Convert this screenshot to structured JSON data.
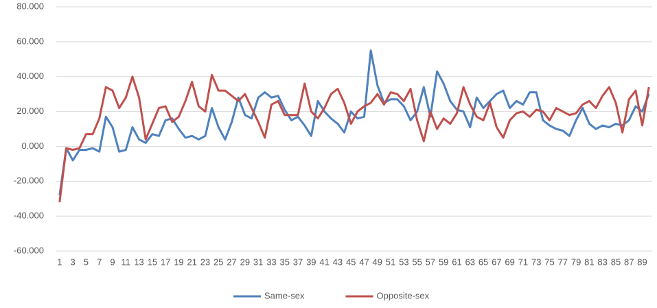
{
  "chart_data": {
    "type": "line",
    "categories": [
      "1",
      null,
      "3",
      null,
      "5",
      null,
      "7",
      null,
      "9",
      null,
      "11",
      null,
      "13",
      null,
      "15",
      null,
      "17",
      null,
      "19",
      null,
      "21",
      null,
      "23",
      null,
      "25",
      null,
      "27",
      null,
      "29",
      null,
      "31",
      null,
      "33",
      null,
      "35",
      null,
      "37",
      null,
      "39",
      null,
      "41",
      null,
      "43",
      null,
      "45",
      null,
      "47",
      null,
      "49",
      null,
      "51",
      null,
      "53",
      null,
      "55",
      null,
      "57",
      null,
      "59",
      null,
      "61",
      null,
      "63",
      null,
      "65",
      null,
      "67",
      null,
      "69",
      null,
      "71",
      null,
      "73",
      null,
      "75",
      null,
      "77",
      null,
      "79",
      null,
      "81",
      null,
      "83",
      null,
      "85",
      null,
      "87",
      null,
      "89",
      null
    ],
    "series": [
      {
        "name": "Same-sex",
        "color": "#4f81bd",
        "values": [
          -28,
          -1,
          -8,
          -2,
          -2,
          -1,
          -3,
          17,
          11,
          -3,
          -2,
          11,
          4,
          2,
          7,
          6,
          15,
          16,
          10,
          5,
          6,
          4,
          6,
          22,
          11,
          4,
          14,
          28,
          18,
          16,
          28,
          31,
          28,
          29,
          21,
          15,
          17,
          12,
          6,
          26,
          20,
          16,
          13,
          8,
          20,
          16,
          17,
          55,
          35,
          25,
          27,
          27,
          23,
          15,
          20,
          34,
          17,
          43,
          36,
          26,
          21,
          20,
          11,
          28,
          22,
          26,
          30,
          32,
          22,
          26,
          24,
          31,
          31,
          15,
          12,
          10,
          9,
          6,
          15,
          22,
          13,
          10,
          12,
          11,
          13,
          12,
          15,
          23,
          20,
          30
        ]
      },
      {
        "name": "Opposite-sex",
        "color": "#c0504d",
        "values": [
          -32,
          -1,
          -2,
          -1,
          7,
          7,
          16,
          34,
          32,
          22,
          28,
          40,
          28,
          4,
          13,
          22,
          23,
          14,
          17,
          26,
          37,
          23,
          20,
          41,
          32,
          32,
          29,
          26,
          30,
          22,
          14,
          5,
          24,
          26,
          18,
          18,
          18,
          36,
          20,
          16,
          22,
          30,
          33,
          25,
          13,
          20,
          23,
          25,
          30,
          24,
          31,
          30,
          26,
          33,
          15,
          3,
          20,
          10,
          16,
          13,
          19,
          34,
          24,
          17,
          15,
          25,
          11,
          5,
          15,
          19,
          20,
          17,
          21,
          20,
          15,
          22,
          20,
          18,
          19,
          24,
          26,
          22,
          29,
          34,
          25,
          8,
          27,
          32,
          12,
          34
        ]
      }
    ],
    "ylim": [
      -60,
      80
    ],
    "yticks": [
      {
        "value": -60,
        "label": "-60.000"
      },
      {
        "value": -40,
        "label": "-40.000"
      },
      {
        "value": -20,
        "label": "-20.000"
      },
      {
        "value": 0,
        "label": "0.000"
      },
      {
        "value": 20,
        "label": "20.000"
      },
      {
        "value": 40,
        "label": "40.000"
      },
      {
        "value": 60,
        "label": "60.000"
      },
      {
        "value": 80,
        "label": "80.000"
      }
    ],
    "grid": true,
    "legend": "bottom"
  }
}
